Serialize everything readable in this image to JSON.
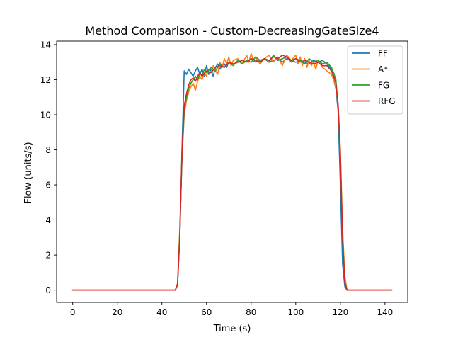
{
  "chart_data": {
    "type": "line",
    "title": "Method Comparison - Custom-DecreasingGateSize4",
    "xlabel": "Time (s)",
    "ylabel": "Flow (units/s)",
    "xlim": [
      -7.2,
      150.2
    ],
    "ylim": [
      -0.7,
      14.2
    ],
    "xticks": [
      0,
      20,
      40,
      60,
      80,
      100,
      120,
      140
    ],
    "yticks": [
      0,
      2,
      4,
      6,
      8,
      10,
      12,
      14
    ],
    "grid": false,
    "legend_position": "top-right",
    "series": [
      {
        "name": "FF",
        "color": "#1f77b4",
        "x": [
          0,
          46,
          47,
          48,
          49,
          50,
          51,
          52,
          53,
          54,
          55,
          56,
          57,
          58,
          59,
          60,
          61,
          62,
          63,
          64,
          65,
          66,
          67,
          68,
          69,
          70,
          72,
          74,
          76,
          78,
          80,
          82,
          84,
          86,
          88,
          90,
          92,
          94,
          96,
          98,
          100,
          102,
          104,
          106,
          108,
          110,
          112,
          114,
          116,
          117,
          118,
          119,
          120,
          121,
          122,
          123,
          124,
          143
        ],
        "y": [
          0,
          0,
          0.3,
          3.0,
          8.0,
          12.5,
          12.3,
          12.6,
          12.4,
          12.2,
          12.5,
          12.7,
          12.3,
          12.6,
          12.2,
          12.8,
          12.3,
          12.6,
          12.2,
          12.7,
          12.9,
          12.6,
          12.8,
          12.9,
          12.7,
          13.0,
          12.9,
          13.0,
          13.1,
          13.0,
          13.2,
          13.0,
          13.1,
          13.2,
          13.0,
          13.1,
          13.2,
          13.0,
          13.2,
          13.1,
          13.0,
          13.1,
          13.0,
          12.9,
          13.1,
          13.0,
          13.1,
          12.9,
          12.6,
          12.0,
          11.5,
          10.2,
          6.0,
          1.5,
          0.2,
          0,
          0,
          0
        ]
      },
      {
        "name": "A*",
        "color": "#ff7f0e",
        "x": [
          0,
          46,
          47,
          48,
          49,
          50,
          51,
          52,
          53,
          54,
          55,
          56,
          57,
          58,
          59,
          60,
          61,
          62,
          63,
          64,
          65,
          66,
          67,
          68,
          69,
          70,
          71,
          72,
          74,
          76,
          78,
          79,
          80,
          81,
          82,
          84,
          86,
          88,
          90,
          92,
          94,
          96,
          98,
          100,
          101,
          102,
          103,
          104,
          105,
          106,
          107,
          108,
          109,
          110,
          111,
          112,
          114,
          116,
          117,
          118,
          119,
          120,
          121,
          122,
          123,
          124,
          143
        ],
        "y": [
          0,
          0,
          0.4,
          3.5,
          7.5,
          10.0,
          10.8,
          11.3,
          11.6,
          11.8,
          11.4,
          11.9,
          12.2,
          12.0,
          12.4,
          12.2,
          12.6,
          12.4,
          12.8,
          12.5,
          12.3,
          13.0,
          12.7,
          13.2,
          12.9,
          13.3,
          12.8,
          13.1,
          13.2,
          12.9,
          13.4,
          13.0,
          13.5,
          13.1,
          13.3,
          12.9,
          13.2,
          13.4,
          13.0,
          13.3,
          12.8,
          13.4,
          13.1,
          13.4,
          12.9,
          13.3,
          12.8,
          13.2,
          12.7,
          13.1,
          12.8,
          13.0,
          12.6,
          13.1,
          12.9,
          12.7,
          12.5,
          12.3,
          12.0,
          11.6,
          10.5,
          8.0,
          3.5,
          0.8,
          0,
          0,
          0
        ]
      },
      {
        "name": "FG",
        "color": "#2ca02c",
        "x": [
          0,
          46,
          47,
          48,
          49,
          50,
          51,
          52,
          53,
          54,
          55,
          56,
          57,
          58,
          59,
          60,
          62,
          64,
          66,
          68,
          70,
          72,
          74,
          76,
          78,
          80,
          82,
          84,
          86,
          88,
          90,
          92,
          94,
          96,
          98,
          100,
          102,
          104,
          106,
          108,
          110,
          112,
          114,
          116,
          117,
          118,
          119,
          120,
          121,
          122,
          123,
          124,
          143
        ],
        "y": [
          0,
          0,
          0.3,
          3.2,
          7.5,
          10.2,
          11.0,
          11.5,
          11.8,
          12.0,
          12.2,
          12.0,
          12.4,
          12.2,
          12.6,
          12.4,
          12.7,
          12.5,
          12.9,
          12.7,
          13.0,
          12.8,
          13.1,
          12.9,
          13.1,
          13.0,
          13.3,
          13.1,
          13.2,
          13.0,
          13.4,
          13.1,
          13.2,
          13.3,
          13.0,
          13.2,
          13.1,
          12.9,
          13.2,
          13.0,
          13.1,
          12.9,
          13.0,
          12.7,
          12.4,
          12.0,
          10.5,
          7.5,
          3.0,
          0.5,
          0,
          0,
          0
        ]
      },
      {
        "name": "RFG",
        "color": "#d62728",
        "x": [
          0,
          46,
          47,
          48,
          49,
          50,
          51,
          52,
          53,
          54,
          55,
          56,
          57,
          58,
          60,
          62,
          64,
          66,
          68,
          70,
          72,
          74,
          76,
          78,
          80,
          82,
          84,
          86,
          88,
          90,
          92,
          94,
          96,
          98,
          100,
          102,
          104,
          106,
          108,
          110,
          112,
          114,
          116,
          117,
          118,
          119,
          120,
          121,
          122,
          123,
          124,
          143
        ],
        "y": [
          0,
          0,
          0.3,
          3.0,
          7.8,
          10.5,
          11.2,
          11.7,
          12.0,
          12.1,
          11.9,
          12.2,
          12.4,
          12.2,
          12.5,
          12.4,
          12.7,
          12.8,
          12.7,
          13.0,
          12.9,
          13.0,
          13.1,
          13.0,
          13.2,
          13.1,
          13.0,
          13.2,
          13.1,
          13.3,
          13.2,
          13.4,
          13.3,
          13.1,
          13.2,
          13.0,
          13.1,
          13.0,
          12.9,
          13.0,
          12.8,
          12.8,
          12.5,
          12.2,
          11.8,
          10.6,
          7.8,
          3.0,
          0.4,
          0,
          0,
          0
        ]
      }
    ]
  }
}
